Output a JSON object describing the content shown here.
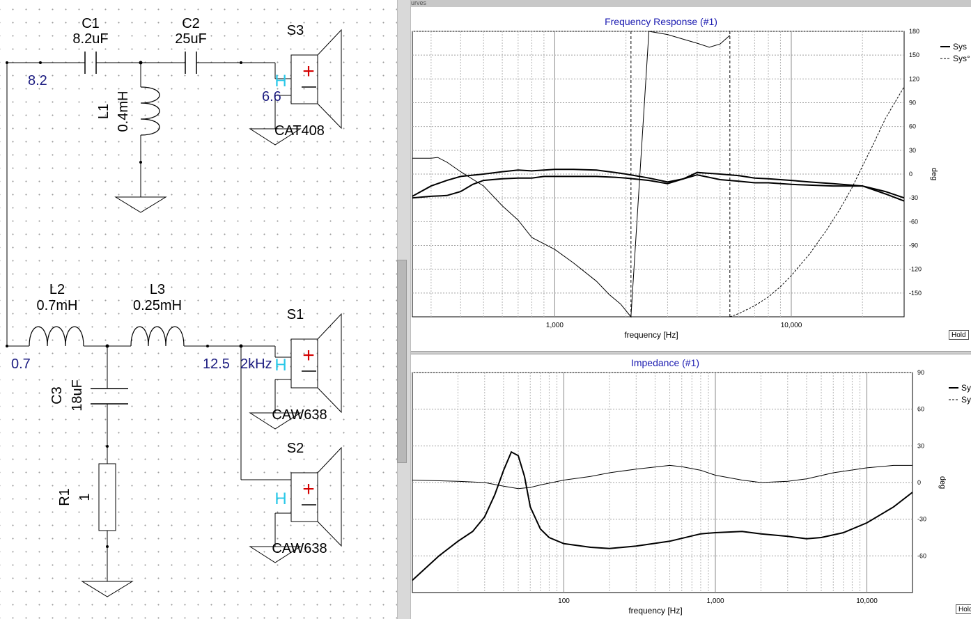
{
  "schematic": {
    "components": {
      "c1": {
        "ref": "C1",
        "value": "8.2uF"
      },
      "c2": {
        "ref": "C2",
        "value": "25uF"
      },
      "c3": {
        "ref": "C3",
        "value": "18uF"
      },
      "l1": {
        "ref": "L1",
        "value": "0.4mH"
      },
      "l2": {
        "ref": "L2",
        "value": "0.7mH"
      },
      "l3": {
        "ref": "L3",
        "value": "0.25mH"
      },
      "r1": {
        "ref": "R1",
        "value": "1"
      },
      "s1": {
        "ref": "S1",
        "model": "CAW638"
      },
      "s2": {
        "ref": "S2",
        "model": "CAW638"
      },
      "s3": {
        "ref": "S3",
        "model": "CAT408"
      }
    },
    "node_labels": {
      "n_top": "8.2",
      "n_s3": "6.6",
      "n_bottom": "0.7",
      "n_s1": "12.5",
      "n_s1_freq": "2kHz"
    },
    "polarity": {
      "plus": "+",
      "minus": "−",
      "marker": "H"
    },
    "colors": {
      "wire": "#000000",
      "node_label": "#1b1b80",
      "plus": "#d40000",
      "marker": "#2ac8e8"
    }
  },
  "graphs_header": "urves",
  "hold_buttons": [
    "Hold",
    "Hold"
  ],
  "chart_data": [
    {
      "type": "line",
      "title": "Frequency Response (#1)",
      "xlabel": "frequency [Hz]",
      "x_scale": "log",
      "x_range": [
        250,
        30000
      ],
      "x_ticks": [
        1000,
        10000
      ],
      "x_tick_labels": [
        "1,000",
        "10,000"
      ],
      "right_axis": {
        "label": "deg",
        "range": [
          -180,
          180
        ],
        "ticks": [
          180,
          150,
          120,
          90,
          60,
          30,
          0,
          -30,
          -60,
          -90,
          -120,
          -150
        ],
        "tick_labels": [
          "180",
          "150",
          "120",
          "90",
          "60",
          "30",
          "0",
          "-30",
          "-60",
          "-90",
          "-120",
          "-150"
        ]
      },
      "grid": true,
      "legend": [
        "Sys",
        "Sys°"
      ],
      "legend_position": "top-right",
      "series": [
        {
          "name": "Sys",
          "style": "solid-thick",
          "unit": "deg-axis",
          "x": [
            250,
            300,
            350,
            400,
            450,
            500,
            600,
            700,
            800,
            900,
            1000,
            1200,
            1500,
            1800,
            2000,
            2500,
            3000,
            3500,
            4000,
            5000,
            6000,
            7000,
            8000,
            10000,
            12000,
            15000,
            20000,
            25000,
            30000
          ],
          "y": [
            -30,
            -28,
            -27,
            -22,
            -13,
            -8,
            -6,
            -5,
            -5,
            -3,
            -3,
            -3,
            -3,
            -4,
            -5,
            -8,
            -12,
            -6,
            -1,
            -7,
            -9,
            -11,
            -11,
            -13,
            -14,
            -15,
            -15,
            -25,
            -34
          ]
        },
        {
          "name": "Sys",
          "style": "solid-thick",
          "unit": "deg-axis",
          "x": [
            250,
            300,
            350,
            400,
            500,
            600,
            700,
            800,
            900,
            1000,
            1200,
            1500,
            1800,
            2000,
            2500,
            3000,
            3500,
            4000,
            5000,
            6000,
            7000,
            8000,
            10000,
            12000,
            15000,
            20000,
            25000,
            30000
          ],
          "y": [
            -28,
            -15,
            -8,
            -3,
            0,
            3,
            5,
            4,
            5,
            6,
            6,
            5,
            2,
            0,
            -5,
            -10,
            -6,
            2,
            0,
            -2,
            -5,
            -6,
            -8,
            -10,
            -12,
            -15,
            -22,
            -30
          ]
        },
        {
          "name": "Sys°",
          "style": "solid-thin",
          "unit": "deg",
          "x": [
            250,
            300,
            320,
            350,
            400,
            500,
            600,
            700,
            800,
            1000,
            1200,
            1500,
            1700,
            1900,
            2100,
            2500,
            3000,
            3500,
            4000,
            4500,
            5000,
            5500
          ],
          "y": [
            20,
            20,
            21,
            15,
            3,
            -15,
            -40,
            -58,
            -80,
            -95,
            -112,
            -135,
            -152,
            -164,
            -180,
            180,
            176,
            170,
            165,
            160,
            164,
            175
          ]
        },
        {
          "name": "Sys°",
          "style": "dashed",
          "unit": "deg",
          "x": [
            5500,
            6000,
            7000,
            8000,
            9000,
            10000,
            12000,
            14000,
            16000,
            18000,
            20000,
            22000,
            25000,
            28000,
            30000
          ],
          "y": [
            -180,
            -176,
            -166,
            -155,
            -142,
            -128,
            -100,
            -72,
            -45,
            -18,
            10,
            35,
            70,
            95,
            110
          ]
        }
      ],
      "markers": [
        2100,
        5500
      ]
    },
    {
      "type": "line",
      "title": "Impedance (#1)",
      "xlabel": "frequency [Hz]",
      "x_scale": "log",
      "x_range": [
        10,
        20000
      ],
      "x_ticks": [
        100,
        1000,
        10000
      ],
      "x_tick_labels": [
        "100",
        "1,000",
        "10,000"
      ],
      "right_axis": {
        "label": "deg",
        "range": [
          -90,
          90
        ],
        "ticks": [
          90,
          60,
          30,
          0,
          -30,
          -60
        ],
        "tick_labels": [
          "90",
          "60",
          "30",
          "0",
          "-30",
          "-60"
        ]
      },
      "grid": true,
      "legend": [
        "Sys",
        "Sys°"
      ],
      "legend_position": "top-right",
      "series": [
        {
          "name": "Sys",
          "style": "solid-thick",
          "unit": "deg-axis",
          "x": [
            10,
            15,
            20,
            25,
            30,
            35,
            40,
            45,
            50,
            55,
            60,
            70,
            80,
            100,
            150,
            200,
            300,
            500,
            800,
            1000,
            1500,
            2000,
            3000,
            4000,
            5000,
            7000,
            10000,
            15000,
            20000
          ],
          "y": [
            -80,
            -60,
            -48,
            -40,
            -28,
            -10,
            10,
            25,
            22,
            5,
            -20,
            -38,
            -45,
            -50,
            -53,
            -54,
            -52,
            -48,
            -42,
            -41,
            -40,
            -42,
            -44,
            -46,
            -45,
            -41,
            -33,
            -20,
            -8
          ]
        },
        {
          "name": "Sys°",
          "style": "solid-thin",
          "unit": "deg",
          "x": [
            10,
            20,
            30,
            40,
            50,
            60,
            70,
            100,
            150,
            200,
            300,
            500,
            600,
            800,
            1000,
            1500,
            2000,
            3000,
            4000,
            6000,
            10000,
            15000,
            20000
          ],
          "y": [
            2,
            1,
            0,
            -3,
            -5,
            -4,
            -2,
            2,
            5,
            8,
            11,
            14,
            13,
            10,
            6,
            2,
            0,
            1,
            3,
            8,
            12,
            14,
            14
          ]
        }
      ]
    }
  ]
}
